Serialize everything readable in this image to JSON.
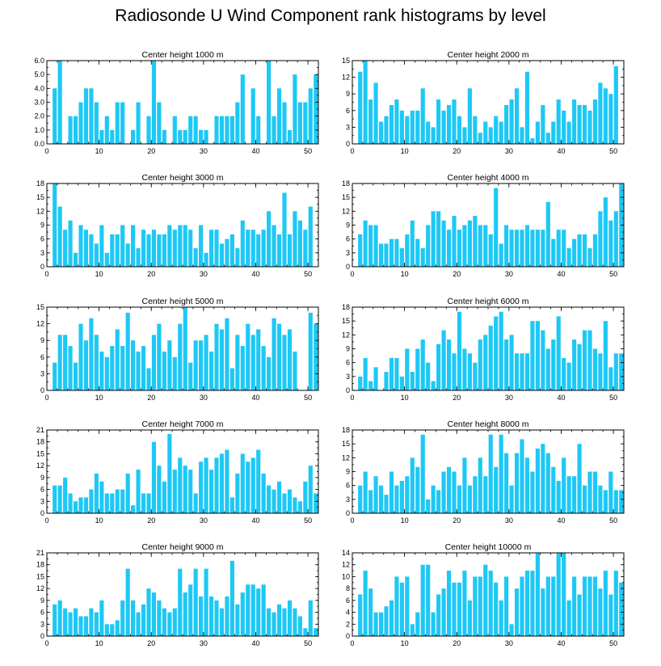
{
  "title": "Radiosonde U Wind Component rank histograms by level",
  "colors": {
    "bar": "#1ec8f5",
    "axis": "#000000",
    "background": "#ffffff"
  },
  "chart_data": [
    {
      "type": "bar",
      "title": "Center height 1000 m",
      "x": [
        0,
        1,
        2,
        3,
        4,
        5,
        6,
        7,
        8,
        9,
        10,
        11,
        12,
        13,
        14,
        15,
        16,
        17,
        18,
        19,
        20,
        21,
        22,
        23,
        24,
        25,
        26,
        27,
        28,
        29,
        30,
        31,
        32,
        33,
        34,
        35,
        36,
        37,
        38,
        39,
        40,
        41,
        42,
        43,
        44,
        45,
        46,
        47,
        48,
        49,
        50,
        51
      ],
      "values": [
        0,
        4,
        6,
        0,
        2,
        2,
        3,
        4,
        4,
        3,
        1,
        2,
        1,
        3,
        3,
        0,
        1,
        3,
        0,
        2,
        6,
        3,
        1,
        0,
        2,
        1,
        1,
        2,
        2,
        1,
        1,
        0,
        2,
        2,
        2,
        2,
        3,
        5,
        0,
        4,
        2,
        0,
        6,
        2,
        4,
        3,
        1,
        5,
        3,
        3,
        4,
        5
      ],
      "xlim": [
        0,
        52
      ],
      "ylim": [
        0,
        6
      ],
      "yticks": [
        "0.0",
        "1.0",
        "2.0",
        "3.0",
        "4.0",
        "5.0",
        "6.0"
      ],
      "xticks": [
        "0",
        "10",
        "20",
        "30",
        "40",
        "50"
      ]
    },
    {
      "type": "bar",
      "title": "Center height 2000 m",
      "x": [
        0,
        1,
        2,
        3,
        4,
        5,
        6,
        7,
        8,
        9,
        10,
        11,
        12,
        13,
        14,
        15,
        16,
        17,
        18,
        19,
        20,
        21,
        22,
        23,
        24,
        25,
        26,
        27,
        28,
        29,
        30,
        31,
        32,
        33,
        34,
        35,
        36,
        37,
        38,
        39,
        40,
        41,
        42,
        43,
        44,
        45,
        46,
        47,
        48,
        49,
        50,
        51
      ],
      "values": [
        0,
        13,
        15,
        8,
        11,
        4,
        5,
        7,
        8,
        6,
        5,
        6,
        6,
        10,
        4,
        3,
        8,
        6,
        7,
        8,
        5,
        3,
        10,
        5,
        2,
        4,
        3,
        5,
        4,
        7,
        8,
        10,
        3,
        13,
        1,
        4,
        7,
        2,
        4,
        8,
        6,
        4,
        8,
        7,
        7,
        6,
        8,
        11,
        10,
        9,
        14,
        0
      ],
      "xlim": [
        0,
        52
      ],
      "ylim": [
        0,
        15
      ],
      "yticks": [
        "0",
        "3",
        "6",
        "9",
        "12",
        "15"
      ],
      "xticks": [
        "0",
        "10",
        "20",
        "30",
        "40",
        "50"
      ]
    },
    {
      "type": "bar",
      "title": "Center height 3000 m",
      "x": [
        0,
        1,
        2,
        3,
        4,
        5,
        6,
        7,
        8,
        9,
        10,
        11,
        12,
        13,
        14,
        15,
        16,
        17,
        18,
        19,
        20,
        21,
        22,
        23,
        24,
        25,
        26,
        27,
        28,
        29,
        30,
        31,
        32,
        33,
        34,
        35,
        36,
        37,
        38,
        39,
        40,
        41,
        42,
        43,
        44,
        45,
        46,
        47,
        48,
        49,
        50,
        51
      ],
      "values": [
        0,
        18,
        13,
        8,
        10,
        3,
        9,
        8,
        7,
        5,
        9,
        3,
        7,
        7,
        9,
        5,
        9,
        4,
        8,
        7,
        8,
        7,
        7,
        9,
        8,
        9,
        9,
        8,
        4,
        9,
        3,
        8,
        8,
        5,
        6,
        7,
        4,
        10,
        8,
        8,
        7,
        8,
        12,
        9,
        7,
        16,
        7,
        12,
        10,
        8,
        13,
        0
      ],
      "xlim": [
        0,
        52
      ],
      "ylim": [
        0,
        18
      ],
      "yticks": [
        "0",
        "3",
        "6",
        "9",
        "12",
        "15",
        "18"
      ],
      "xticks": [
        "0",
        "10",
        "20",
        "30",
        "40",
        "50"
      ]
    },
    {
      "type": "bar",
      "title": "Center height 4000 m",
      "x": [
        0,
        1,
        2,
        3,
        4,
        5,
        6,
        7,
        8,
        9,
        10,
        11,
        12,
        13,
        14,
        15,
        16,
        17,
        18,
        19,
        20,
        21,
        22,
        23,
        24,
        25,
        26,
        27,
        28,
        29,
        30,
        31,
        32,
        33,
        34,
        35,
        36,
        37,
        38,
        39,
        40,
        41,
        42,
        43,
        44,
        45,
        46,
        47,
        48,
        49,
        50,
        51
      ],
      "values": [
        0,
        7,
        10,
        9,
        9,
        5,
        5,
        6,
        6,
        4,
        7,
        10,
        6,
        4,
        9,
        12,
        12,
        10,
        8,
        11,
        8,
        9,
        10,
        11,
        9,
        9,
        7,
        17,
        5,
        9,
        8,
        8,
        8,
        9,
        8,
        8,
        8,
        14,
        6,
        8,
        8,
        4,
        6,
        7,
        7,
        4,
        7,
        12,
        15,
        10,
        12,
        18
      ],
      "xlim": [
        0,
        52
      ],
      "ylim": [
        0,
        18
      ],
      "yticks": [
        "0",
        "3",
        "6",
        "9",
        "12",
        "15",
        "18"
      ],
      "xticks": [
        "0",
        "10",
        "20",
        "30",
        "40",
        "50"
      ]
    },
    {
      "type": "bar",
      "title": "Center height 5000 m",
      "x": [
        0,
        1,
        2,
        3,
        4,
        5,
        6,
        7,
        8,
        9,
        10,
        11,
        12,
        13,
        14,
        15,
        16,
        17,
        18,
        19,
        20,
        21,
        22,
        23,
        24,
        25,
        26,
        27,
        28,
        29,
        30,
        31,
        32,
        33,
        34,
        35,
        36,
        37,
        38,
        39,
        40,
        41,
        42,
        43,
        44,
        45,
        46,
        47,
        48,
        49,
        50,
        51
      ],
      "values": [
        0,
        5,
        10,
        10,
        8,
        5,
        12,
        9,
        13,
        10,
        7,
        6,
        8,
        11,
        8,
        14,
        9,
        7,
        8,
        4,
        10,
        12,
        7,
        9,
        6,
        12,
        15,
        5,
        9,
        9,
        10,
        7,
        12,
        11,
        13,
        4,
        10,
        8,
        12,
        10,
        11,
        8,
        6,
        13,
        12,
        10,
        11,
        7,
        0,
        0,
        14,
        12
      ],
      "xlim": [
        0,
        52
      ],
      "ylim": [
        0,
        15
      ],
      "yticks": [
        "0",
        "3",
        "6",
        "9",
        "12",
        "15"
      ],
      "xticks": [
        "0",
        "10",
        "20",
        "30",
        "40",
        "50"
      ]
    },
    {
      "type": "bar",
      "title": "Center height 6000 m",
      "x": [
        0,
        1,
        2,
        3,
        4,
        5,
        6,
        7,
        8,
        9,
        10,
        11,
        12,
        13,
        14,
        15,
        16,
        17,
        18,
        19,
        20,
        21,
        22,
        23,
        24,
        25,
        26,
        27,
        28,
        29,
        30,
        31,
        32,
        33,
        34,
        35,
        36,
        37,
        38,
        39,
        40,
        41,
        42,
        43,
        44,
        45,
        46,
        47,
        48,
        49,
        50,
        51
      ],
      "values": [
        0,
        3,
        7,
        2,
        5,
        0,
        4,
        7,
        7,
        3,
        9,
        4,
        9,
        11,
        6,
        2,
        10,
        13,
        11,
        8,
        17,
        9,
        8,
        6,
        11,
        12,
        14,
        16,
        17,
        11,
        12,
        8,
        8,
        8,
        15,
        15,
        13,
        9,
        11,
        16,
        7,
        6,
        11,
        10,
        13,
        13,
        9,
        8,
        15,
        5,
        8,
        8
      ],
      "xlim": [
        0,
        52
      ],
      "ylim": [
        0,
        18
      ],
      "yticks": [
        "0",
        "3",
        "6",
        "9",
        "12",
        "15",
        "18"
      ],
      "xticks": [
        "0",
        "10",
        "20",
        "30",
        "40",
        "50"
      ]
    },
    {
      "type": "bar",
      "title": "Center height 7000 m",
      "x": [
        0,
        1,
        2,
        3,
        4,
        5,
        6,
        7,
        8,
        9,
        10,
        11,
        12,
        13,
        14,
        15,
        16,
        17,
        18,
        19,
        20,
        21,
        22,
        23,
        24,
        25,
        26,
        27,
        28,
        29,
        30,
        31,
        32,
        33,
        34,
        35,
        36,
        37,
        38,
        39,
        40,
        41,
        42,
        43,
        44,
        45,
        46,
        47,
        48,
        49,
        50,
        51
      ],
      "values": [
        0,
        7,
        7,
        9,
        5,
        3,
        4,
        4,
        6,
        10,
        8,
        5,
        5,
        6,
        6,
        10,
        2,
        11,
        5,
        5,
        18,
        12,
        8,
        20,
        11,
        14,
        12,
        11,
        5,
        13,
        14,
        11,
        14,
        15,
        16,
        4,
        10,
        15,
        13,
        14,
        16,
        10,
        7,
        6,
        8,
        5,
        6,
        4,
        3,
        8,
        12,
        5
      ],
      "xlim": [
        0,
        52
      ],
      "ylim": [
        0,
        21
      ],
      "yticks": [
        "0",
        "3",
        "6",
        "9",
        "12",
        "15",
        "18",
        "21"
      ],
      "xticks": [
        "0",
        "10",
        "20",
        "30",
        "40",
        "50"
      ]
    },
    {
      "type": "bar",
      "title": "Center height 8000 m",
      "x": [
        0,
        1,
        2,
        3,
        4,
        5,
        6,
        7,
        8,
        9,
        10,
        11,
        12,
        13,
        14,
        15,
        16,
        17,
        18,
        19,
        20,
        21,
        22,
        23,
        24,
        25,
        26,
        27,
        28,
        29,
        30,
        31,
        32,
        33,
        34,
        35,
        36,
        37,
        38,
        39,
        40,
        41,
        42,
        43,
        44,
        45,
        46,
        47,
        48,
        49,
        50,
        51
      ],
      "values": [
        0,
        6,
        9,
        5,
        8,
        6,
        4,
        9,
        6,
        7,
        8,
        12,
        10,
        17,
        3,
        6,
        5,
        9,
        10,
        9,
        6,
        12,
        6,
        8,
        12,
        8,
        17,
        10,
        17,
        13,
        6,
        13,
        16,
        12,
        9,
        14,
        15,
        13,
        10,
        7,
        12,
        8,
        8,
        15,
        6,
        9,
        9,
        6,
        5,
        9,
        5,
        5
      ],
      "xlim": [
        0,
        52
      ],
      "ylim": [
        0,
        18
      ],
      "yticks": [
        "0",
        "3",
        "6",
        "9",
        "12",
        "15",
        "18"
      ],
      "xticks": [
        "0",
        "10",
        "20",
        "30",
        "40",
        "50"
      ]
    },
    {
      "type": "bar",
      "title": "Center height 9000 m",
      "x": [
        0,
        1,
        2,
        3,
        4,
        5,
        6,
        7,
        8,
        9,
        10,
        11,
        12,
        13,
        14,
        15,
        16,
        17,
        18,
        19,
        20,
        21,
        22,
        23,
        24,
        25,
        26,
        27,
        28,
        29,
        30,
        31,
        32,
        33,
        34,
        35,
        36,
        37,
        38,
        39,
        40,
        41,
        42,
        43,
        44,
        45,
        46,
        47,
        48,
        49,
        50,
        51
      ],
      "values": [
        0,
        8,
        9,
        7,
        6,
        7,
        5,
        5,
        7,
        6,
        9,
        3,
        3,
        4,
        9,
        17,
        9,
        6,
        8,
        12,
        11,
        9,
        7,
        6,
        7,
        17,
        11,
        13,
        17,
        10,
        17,
        10,
        9,
        7,
        10,
        19,
        8,
        11,
        13,
        13,
        12,
        13,
        7,
        6,
        8,
        7,
        9,
        7,
        5,
        2,
        9,
        2
      ],
      "xlim": [
        0,
        52
      ],
      "ylim": [
        0,
        21
      ],
      "yticks": [
        "0",
        "3",
        "6",
        "9",
        "12",
        "15",
        "18",
        "21"
      ],
      "xticks": [
        "0",
        "10",
        "20",
        "30",
        "40",
        "50"
      ]
    },
    {
      "type": "bar",
      "title": "Center height 10000 m",
      "x": [
        0,
        1,
        2,
        3,
        4,
        5,
        6,
        7,
        8,
        9,
        10,
        11,
        12,
        13,
        14,
        15,
        16,
        17,
        18,
        19,
        20,
        21,
        22,
        23,
        24,
        25,
        26,
        27,
        28,
        29,
        30,
        31,
        32,
        33,
        34,
        35,
        36,
        37,
        38,
        39,
        40,
        41,
        42,
        43,
        44,
        45,
        46,
        47,
        48,
        49,
        50,
        51
      ],
      "values": [
        0,
        7,
        11,
        8,
        4,
        4,
        5,
        6,
        10,
        9,
        10,
        2,
        4,
        12,
        12,
        4,
        7,
        8,
        11,
        9,
        9,
        11,
        6,
        10,
        10,
        12,
        11,
        9,
        6,
        10,
        2,
        8,
        10,
        11,
        11,
        14,
        8,
        10,
        10,
        14,
        14,
        6,
        10,
        7,
        10,
        10,
        10,
        8,
        11,
        7,
        11,
        9
      ],
      "xlim": [
        0,
        52
      ],
      "ylim": [
        0,
        14
      ],
      "yticks": [
        "0",
        "2",
        "4",
        "6",
        "8",
        "10",
        "12",
        "14"
      ],
      "xticks": [
        "0",
        "10",
        "20",
        "30",
        "40",
        "50"
      ]
    }
  ]
}
